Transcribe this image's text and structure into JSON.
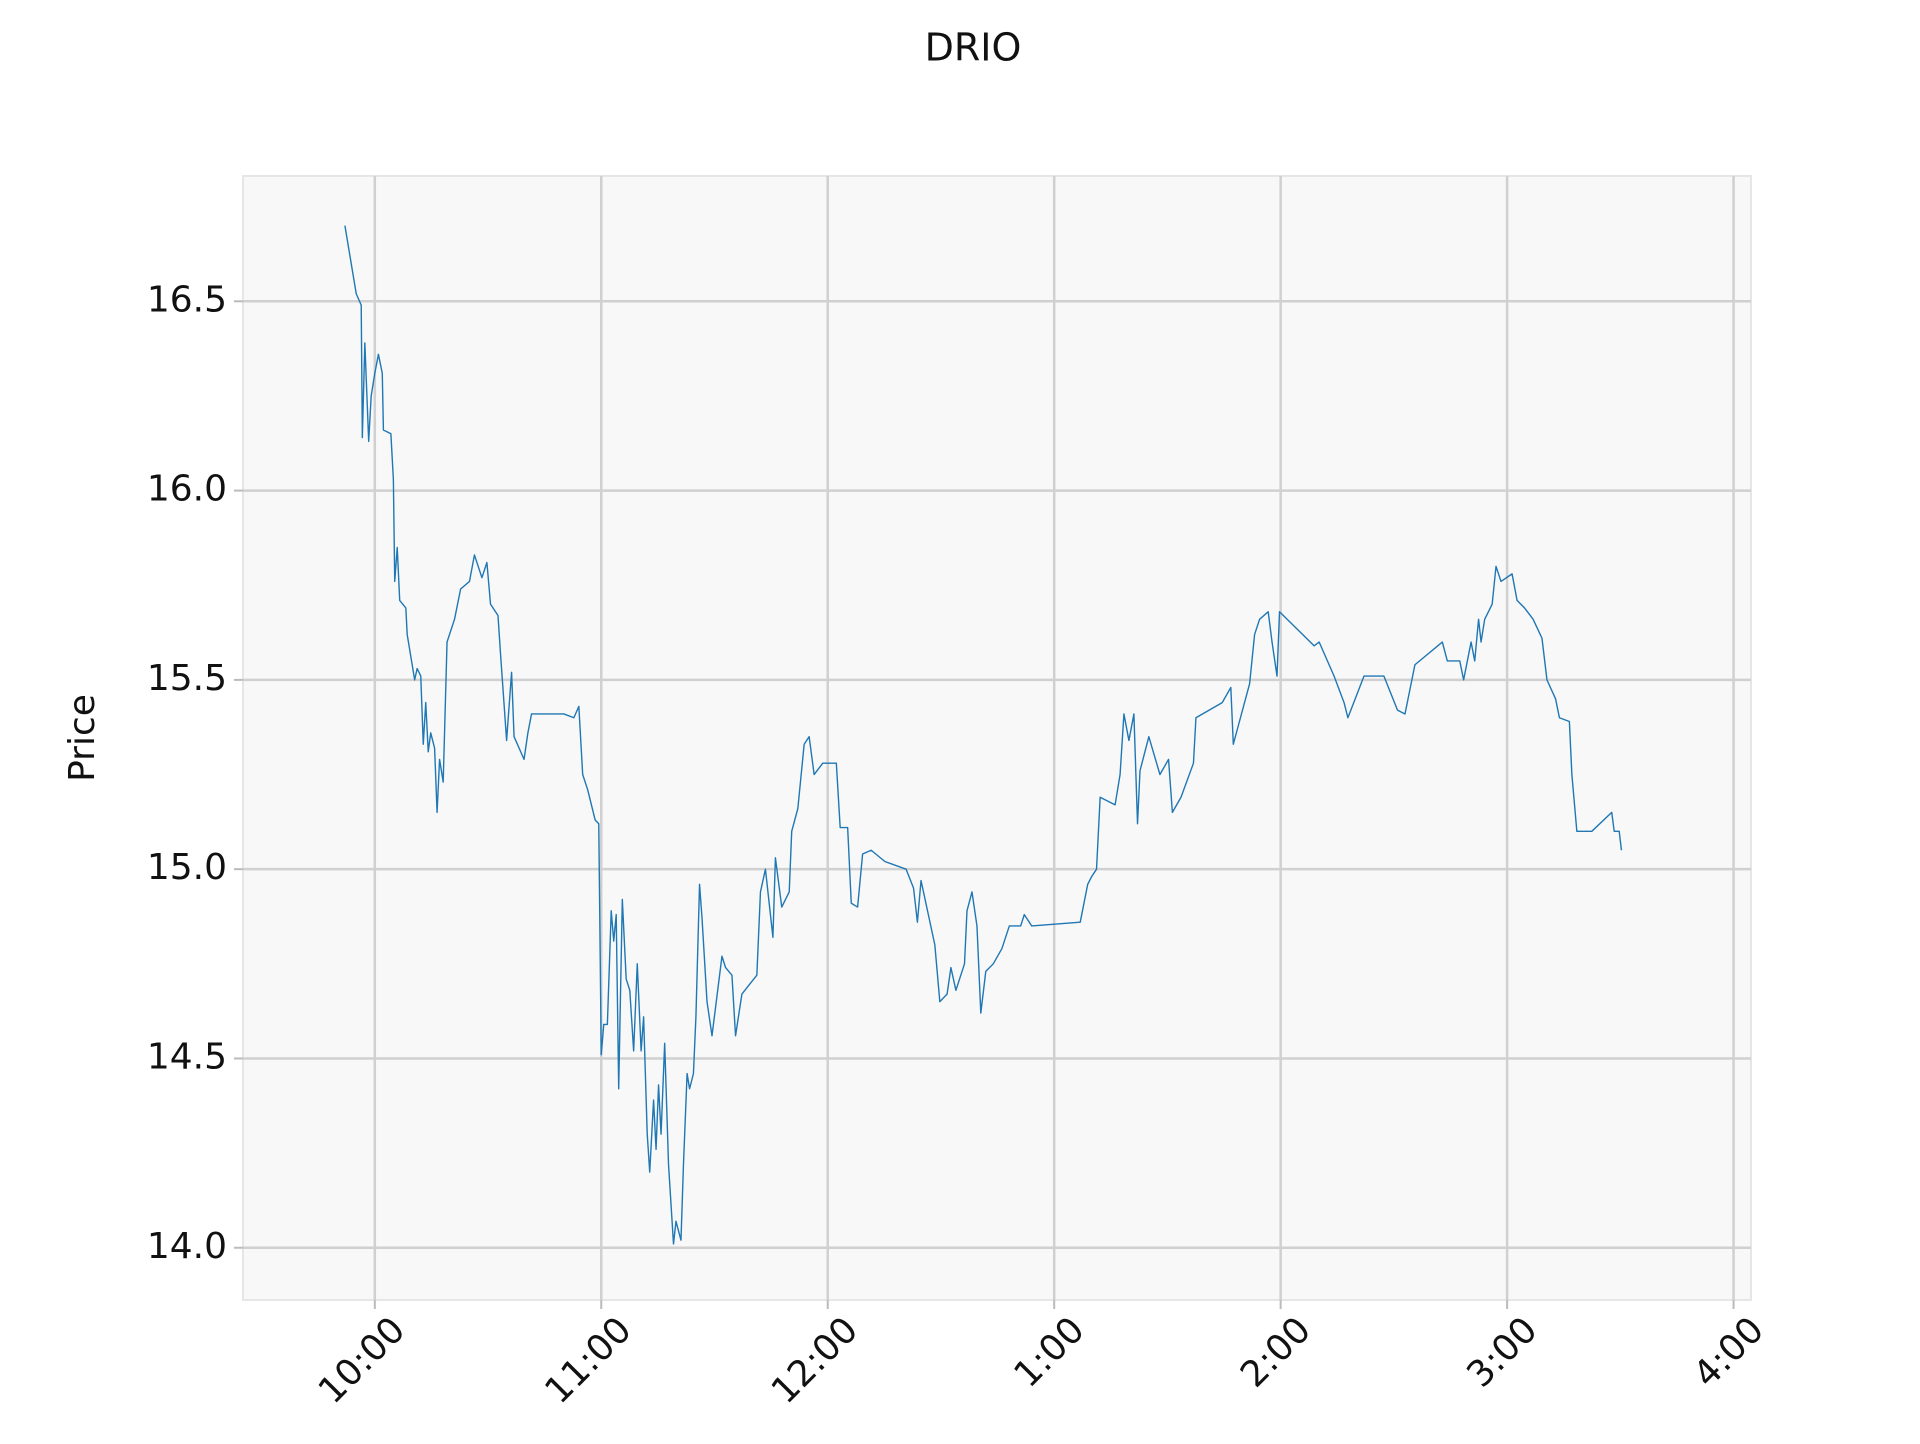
{
  "chart_data": {
    "type": "line",
    "title": "DRIO",
    "y_label": "Price",
    "color": "#1f77b4",
    "grid": true,
    "x": [
      9.868,
      9.918,
      9.94,
      9.945,
      9.956,
      9.973,
      9.984,
      10.0,
      10.016,
      10.033,
      10.038,
      10.071,
      10.082,
      10.088,
      10.099,
      10.11,
      10.137,
      10.143,
      10.176,
      10.187,
      10.203,
      10.214,
      10.225,
      10.236,
      10.247,
      10.264,
      10.275,
      10.286,
      10.302,
      10.319,
      10.352,
      10.379,
      10.418,
      10.44,
      10.473,
      10.495,
      10.511,
      10.544,
      10.555,
      10.582,
      10.604,
      10.615,
      10.659,
      10.676,
      10.692,
      10.835,
      10.879,
      10.901,
      10.918,
      10.94,
      10.973,
      10.989,
      11.0,
      11.011,
      11.027,
      11.044,
      11.055,
      11.066,
      11.077,
      11.093,
      11.11,
      11.126,
      11.143,
      11.159,
      11.176,
      11.187,
      11.203,
      11.214,
      11.231,
      11.242,
      11.253,
      11.264,
      11.28,
      11.297,
      11.319,
      11.33,
      11.352,
      11.363,
      11.379,
      11.39,
      11.407,
      11.418,
      11.434,
      11.445,
      11.467,
      11.489,
      11.533,
      11.549,
      11.577,
      11.593,
      11.621,
      11.687,
      11.703,
      11.725,
      11.758,
      11.769,
      11.797,
      11.83,
      11.841,
      11.868,
      11.896,
      11.918,
      11.94,
      11.978,
      12.038,
      12.055,
      12.088,
      12.104,
      12.132,
      12.154,
      12.192,
      12.253,
      12.346,
      12.379,
      12.396,
      12.412,
      12.473,
      12.495,
      12.527,
      12.544,
      12.566,
      12.604,
      12.615,
      12.637,
      12.659,
      12.676,
      12.698,
      12.731,
      12.769,
      12.802,
      12.852,
      12.868,
      12.901,
      13.115,
      13.148,
      13.165,
      13.187,
      13.203,
      13.269,
      13.291,
      13.308,
      13.33,
      13.352,
      13.368,
      13.379,
      13.418,
      13.467,
      13.505,
      13.522,
      13.56,
      13.615,
      13.626,
      13.742,
      13.78,
      13.791,
      13.863,
      13.885,
      13.907,
      13.945,
      13.962,
      13.984,
      13.995,
      14.148,
      14.17,
      14.236,
      14.28,
      14.297,
      14.368,
      14.456,
      14.516,
      14.549,
      14.593,
      14.714,
      14.736,
      14.791,
      14.808,
      14.841,
      14.857,
      14.874,
      14.885,
      14.901,
      14.934,
      14.951,
      14.973,
      15.022,
      15.044,
      15.077,
      15.115,
      15.154,
      15.176,
      15.214,
      15.231,
      15.275,
      15.286,
      15.308,
      15.374,
      15.462,
      15.473,
      15.495,
      15.505
    ],
    "values": [
      16.7,
      16.52,
      16.49,
      16.14,
      16.39,
      16.13,
      16.25,
      16.31,
      16.36,
      16.31,
      16.16,
      16.15,
      16.03,
      15.76,
      15.85,
      15.71,
      15.69,
      15.62,
      15.5,
      15.53,
      15.51,
      15.33,
      15.44,
      15.31,
      15.36,
      15.32,
      15.15,
      15.29,
      15.23,
      15.6,
      15.66,
      15.74,
      15.76,
      15.83,
      15.77,
      15.81,
      15.7,
      15.67,
      15.57,
      15.34,
      15.52,
      15.35,
      15.29,
      15.36,
      15.41,
      15.41,
      15.4,
      15.43,
      15.25,
      15.21,
      15.13,
      15.12,
      14.51,
      14.59,
      14.59,
      14.89,
      14.81,
      14.88,
      14.42,
      14.92,
      14.71,
      14.68,
      14.52,
      14.75,
      14.52,
      14.61,
      14.3,
      14.2,
      14.39,
      14.26,
      14.43,
      14.3,
      14.54,
      14.22,
      14.01,
      14.07,
      14.02,
      14.22,
      14.46,
      14.42,
      14.46,
      14.61,
      14.96,
      14.87,
      14.65,
      14.56,
      14.77,
      14.74,
      14.72,
      14.56,
      14.67,
      14.72,
      14.94,
      15.0,
      14.82,
      15.03,
      14.9,
      14.94,
      15.1,
      15.16,
      15.33,
      15.35,
      15.25,
      15.28,
      15.28,
      15.11,
      15.11,
      14.91,
      14.9,
      15.04,
      15.05,
      15.02,
      15.0,
      14.95,
      14.86,
      14.97,
      14.8,
      14.65,
      14.67,
      14.74,
      14.68,
      14.75,
      14.89,
      14.94,
      14.85,
      14.62,
      14.73,
      14.75,
      14.79,
      14.85,
      14.85,
      14.88,
      14.85,
      14.86,
      14.96,
      14.98,
      15.0,
      15.19,
      15.17,
      15.25,
      15.41,
      15.34,
      15.41,
      15.12,
      15.26,
      15.35,
      15.25,
      15.29,
      15.15,
      15.19,
      15.28,
      15.4,
      15.44,
      15.48,
      15.33,
      15.49,
      15.62,
      15.66,
      15.68,
      15.6,
      15.51,
      15.68,
      15.59,
      15.6,
      15.51,
      15.44,
      15.4,
      15.51,
      15.51,
      15.42,
      15.41,
      15.54,
      15.6,
      15.55,
      15.55,
      15.5,
      15.6,
      15.55,
      15.66,
      15.6,
      15.66,
      15.7,
      15.8,
      15.76,
      15.78,
      15.71,
      15.69,
      15.66,
      15.61,
      15.5,
      15.45,
      15.4,
      15.39,
      15.25,
      15.1,
      15.1,
      15.15,
      15.1,
      15.1,
      15.05
    ],
    "xlim": [
      9.418,
      16.077
    ],
    "xticks": [
      {
        "value": 10,
        "label": "10:00"
      },
      {
        "value": 11,
        "label": "11:00"
      },
      {
        "value": 12,
        "label": "12:00"
      },
      {
        "value": 13,
        "label": "1:00"
      },
      {
        "value": 14,
        "label": "2:00"
      },
      {
        "value": 15,
        "label": "3:00"
      },
      {
        "value": 16,
        "label": "4:00"
      }
    ],
    "ylim": [
      13.862,
      16.831
    ],
    "yticks": [
      {
        "value": 14,
        "label": "14.0"
      },
      14.5,
      {
        "value": 15,
        "label": "15.0"
      },
      15.5,
      {
        "value": 16,
        "label": "16.0"
      },
      16.5
    ]
  }
}
